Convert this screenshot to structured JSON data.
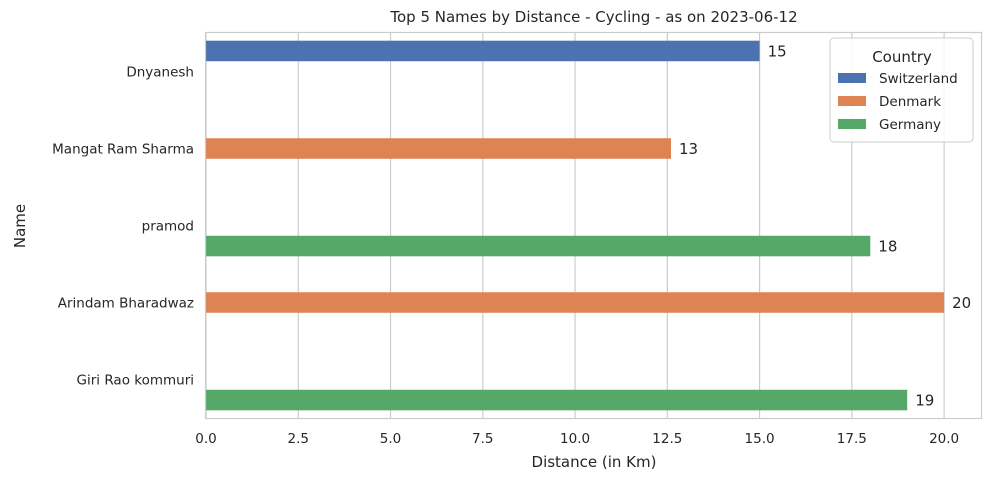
{
  "chart_data": {
    "type": "bar",
    "orientation": "horizontal",
    "title": "Top 5 Names by Distance - Cycling - as on 2023-06-12",
    "xlabel": "Distance (in Km)",
    "ylabel": "Name",
    "xlim": [
      0,
      21
    ],
    "xticks": [
      "0.0",
      "2.5",
      "5.0",
      "7.5",
      "10.0",
      "12.5",
      "15.0",
      "17.5",
      "20.0"
    ],
    "xtick_values": [
      0,
      2.5,
      5,
      7.5,
      10,
      12.5,
      15,
      17.5,
      20
    ],
    "grid": "vertical",
    "categories": [
      "Dnyanesh",
      "Mangat Ram Sharma",
      "pramod",
      "Arindam Bharadwaz",
      "Giri Rao kommuri"
    ],
    "series": [
      {
        "name": "Switzerland",
        "color": "#4c72b0",
        "values": [
          15,
          null,
          null,
          null,
          null
        ]
      },
      {
        "name": "Denmark",
        "color": "#dd8452",
        "values": [
          null,
          12.6,
          null,
          20,
          null
        ]
      },
      {
        "name": "Germany",
        "color": "#55a868",
        "values": [
          null,
          null,
          18,
          null,
          19
        ]
      }
    ],
    "data_labels": [
      "15",
      "13",
      "18",
      "20",
      "19"
    ],
    "legend": {
      "title": "Country",
      "position": "top-right"
    }
  }
}
